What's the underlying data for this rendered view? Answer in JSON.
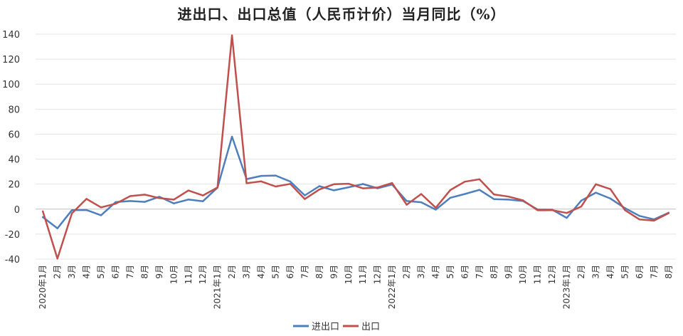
{
  "chart_data": {
    "type": "line",
    "title": "进出口、出口总值（人民币计价）当月同比（%）",
    "xlabel": "",
    "ylabel": "",
    "ylim": [
      -40,
      140
    ],
    "yticks": [
      140,
      120,
      100,
      80,
      60,
      40,
      20,
      0,
      -20,
      -40
    ],
    "grid": "horizontal",
    "legend_position": "bottom-center",
    "x": [
      "2020年1月",
      "2月",
      "3月",
      "4月",
      "5月",
      "6月",
      "7月",
      "8月",
      "9月",
      "10月",
      "11月",
      "12月",
      "2021年1月",
      "2月",
      "3月",
      "4月",
      "5月",
      "6月",
      "7月",
      "8月",
      "9月",
      "10月",
      "11月",
      "12月",
      "2022年1月",
      "2月",
      "3月",
      "4月",
      "5月",
      "6月",
      "7月",
      "8月",
      "9月",
      "10月",
      "11月",
      "12月",
      "2023年1月",
      "2月",
      "3月",
      "4月",
      "5月",
      "6月",
      "7月",
      "8月"
    ],
    "series": [
      {
        "name": "进出口",
        "color": "#4e7fbd",
        "values": [
          -6.4,
          -15.4,
          -0.8,
          -0.7,
          -4.9,
          5.6,
          6.5,
          5.8,
          9.9,
          4.6,
          7.7,
          6.3,
          17.2,
          58.0,
          24.0,
          26.6,
          26.9,
          22.1,
          11.0,
          18.4,
          15.0,
          17.5,
          20.1,
          16.7,
          19.7,
          6.5,
          5.5,
          -0.4,
          9.1,
          12.1,
          15.4,
          8.0,
          7.6,
          6.5,
          -0.3,
          -0.4,
          -7.0,
          6.8,
          13.2,
          8.5,
          0.8,
          -5.4,
          -8.2,
          -2.9
        ]
      },
      {
        "name": "出口",
        "color": "#c0504d",
        "values": [
          -1.8,
          -39.6,
          -3.3,
          8.2,
          1.4,
          4.3,
          10.4,
          11.6,
          8.8,
          7.6,
          14.9,
          10.9,
          17.3,
          139.0,
          20.7,
          22.2,
          18.1,
          20.2,
          8.1,
          15.7,
          19.9,
          20.3,
          16.6,
          17.3,
          20.9,
          3.5,
          12.1,
          1.1,
          15.3,
          22.0,
          23.9,
          11.8,
          10.0,
          7.0,
          -0.9,
          -0.8,
          -3.1,
          2.1,
          19.9,
          16.0,
          -0.8,
          -8.3,
          -9.2,
          -3.2
        ]
      }
    ]
  }
}
